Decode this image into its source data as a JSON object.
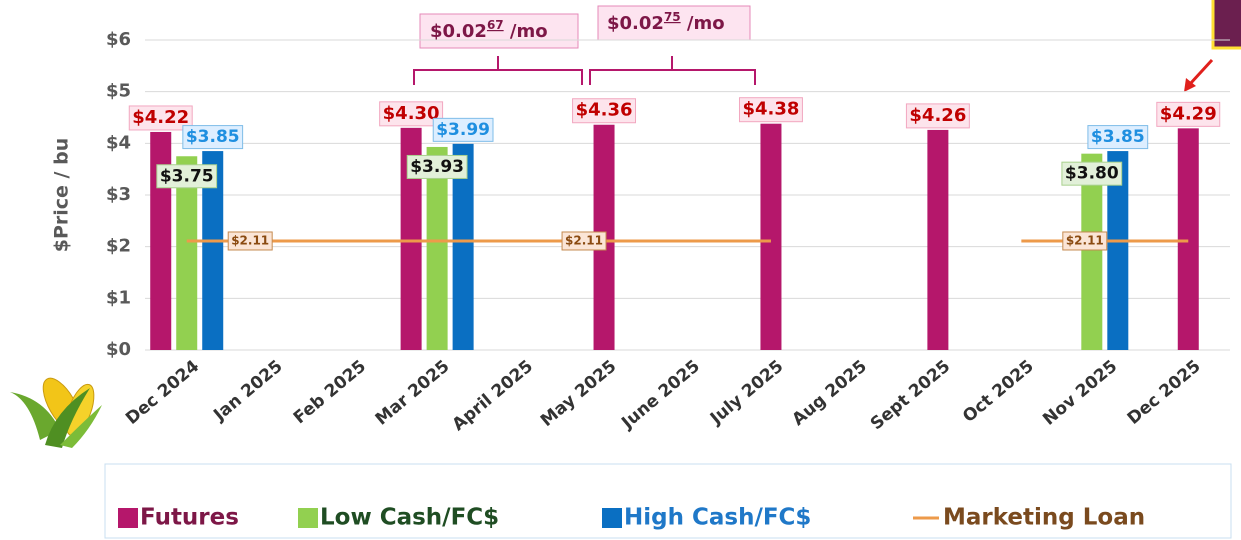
{
  "chart_data": {
    "type": "bar",
    "y_label": "$Price / bu",
    "categories": [
      "Dec 2024",
      "Jan 2025",
      "Feb 2025",
      "Mar 2025",
      "April 2025",
      "May 2025",
      "June 2025",
      "July 2025",
      "Aug 2025",
      "Sept 2025",
      "Oct 2025",
      "Nov 2025",
      "Dec 2025"
    ],
    "ylim": [
      0,
      6
    ],
    "yticks": [
      {
        "value": 0,
        "label": "$0"
      },
      {
        "value": 1,
        "label": "$1"
      },
      {
        "value": 2,
        "label": "$2"
      },
      {
        "value": 3,
        "label": "$3"
      },
      {
        "value": 4,
        "label": "$4"
      },
      {
        "value": 5,
        "label": "$5"
      },
      {
        "value": 6,
        "label": "$6"
      }
    ],
    "grid": true,
    "series": [
      {
        "name": "Futures",
        "color": "#b5176b",
        "label_color": "#7d1747",
        "values": [
          4.22,
          null,
          null,
          4.3,
          null,
          4.36,
          null,
          4.38,
          null,
          4.26,
          null,
          null,
          4.29
        ],
        "value_labels": [
          "$4.22",
          null,
          null,
          "$4.30",
          null,
          "$4.36",
          null,
          "$4.38",
          null,
          "$4.26",
          null,
          null,
          "$4.29"
        ]
      },
      {
        "name": "Low Cash/FC$",
        "color": "#92d050",
        "label_color": "#1f4d23",
        "values": [
          3.75,
          null,
          null,
          3.93,
          null,
          null,
          null,
          null,
          null,
          null,
          null,
          3.8,
          null
        ],
        "value_labels": [
          "$3.75",
          null,
          null,
          "$3.93",
          null,
          null,
          null,
          null,
          null,
          null,
          null,
          "$3.80",
          null
        ]
      },
      {
        "name": "High Cash/FC$",
        "color": "#0a6fc2",
        "label_color": "#1f78c8",
        "values": [
          3.85,
          null,
          null,
          3.99,
          null,
          null,
          null,
          null,
          null,
          null,
          null,
          3.85,
          null
        ],
        "value_labels": [
          "$3.85",
          null,
          null,
          "$3.99",
          null,
          null,
          null,
          null,
          null,
          null,
          null,
          "$3.85",
          null
        ]
      },
      {
        "name": "Marketing Loan",
        "type": "line",
        "color": "#ed9a4a",
        "label_color": "#7a4a1e",
        "values": [
          2.11,
          2.11,
          2.11,
          2.11,
          2.11,
          2.11,
          2.11,
          2.11,
          null,
          null,
          2.11,
          2.11,
          2.11
        ],
        "value_labels": [
          null,
          "$2.11",
          null,
          null,
          null,
          "$2.11",
          null,
          null,
          null,
          null,
          null,
          "$2.11",
          null
        ]
      }
    ],
    "annotations": [
      {
        "text": "$0.02",
        "superscript": "67",
        "suffix": " /mo"
      },
      {
        "text": "$0.02",
        "superscript": "75",
        "suffix": " /mo"
      }
    ]
  }
}
